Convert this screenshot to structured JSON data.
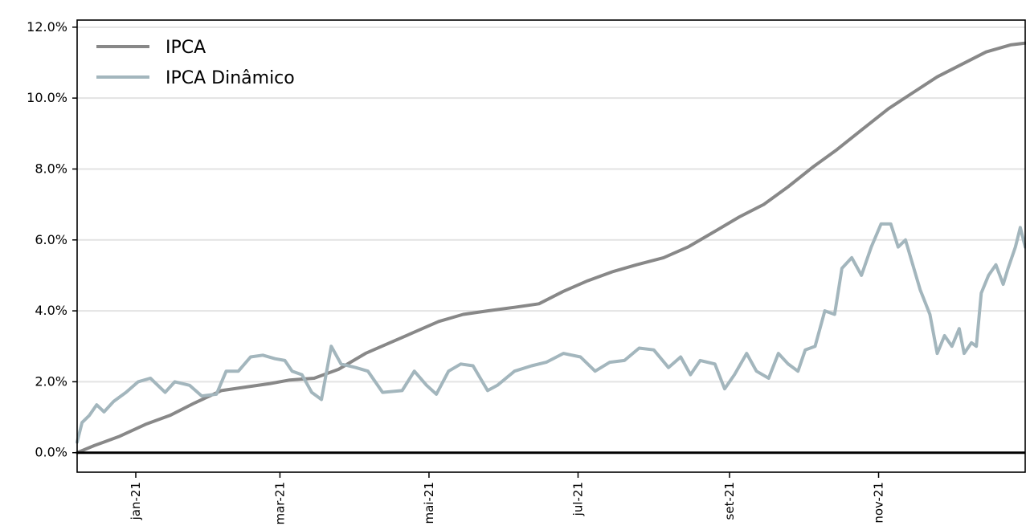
{
  "chart_data": {
    "type": "line",
    "title": "",
    "xlabel": "",
    "ylabel": "",
    "y_tick_labels": [
      "0.0%",
      "2.0%",
      "4.0%",
      "6.0%",
      "8.0%",
      "10.0%",
      "12.0%"
    ],
    "y_ticks": [
      0,
      2,
      4,
      6,
      8,
      10,
      12
    ],
    "ylim": [
      -0.55,
      12.2
    ],
    "xlim": [
      "2020-12-08",
      "2021-12-31"
    ],
    "x_ticks": [
      "2021-01-01",
      "2021-03-01",
      "2021-05-01",
      "2021-07-01",
      "2021-09-01",
      "2021-11-01"
    ],
    "x_tick_labels": [
      "jan-21",
      "mar-21",
      "mai-21",
      "jul-21",
      "set-21",
      "nov-21"
    ],
    "grid": "horizontal",
    "legend_position": "top-left",
    "zero_line": true,
    "series": [
      {
        "name": "IPCA",
        "color": "#888888",
        "points": [
          [
            "2020-12-08",
            0.0
          ],
          [
            "2020-12-15",
            0.2
          ],
          [
            "2020-12-25",
            0.45
          ],
          [
            "2021-01-05",
            0.8
          ],
          [
            "2021-01-15",
            1.05
          ],
          [
            "2021-01-25",
            1.4
          ],
          [
            "2021-02-05",
            1.75
          ],
          [
            "2021-02-15",
            1.85
          ],
          [
            "2021-02-25",
            1.95
          ],
          [
            "2021-03-05",
            2.05
          ],
          [
            "2021-03-15",
            2.1
          ],
          [
            "2021-03-25",
            2.35
          ],
          [
            "2021-04-05",
            2.8
          ],
          [
            "2021-04-15",
            3.1
          ],
          [
            "2021-04-25",
            3.4
          ],
          [
            "2021-05-05",
            3.7
          ],
          [
            "2021-05-15",
            3.9
          ],
          [
            "2021-05-25",
            4.0
          ],
          [
            "2021-06-05",
            4.1
          ],
          [
            "2021-06-15",
            4.2
          ],
          [
            "2021-06-25",
            4.55
          ],
          [
            "2021-07-05",
            4.85
          ],
          [
            "2021-07-15",
            5.1
          ],
          [
            "2021-07-25",
            5.3
          ],
          [
            "2021-08-05",
            5.5
          ],
          [
            "2021-08-15",
            5.8
          ],
          [
            "2021-08-25",
            6.2
          ],
          [
            "2021-09-05",
            6.65
          ],
          [
            "2021-09-15",
            7.0
          ],
          [
            "2021-09-25",
            7.5
          ],
          [
            "2021-10-05",
            8.05
          ],
          [
            "2021-10-15",
            8.55
          ],
          [
            "2021-10-25",
            9.1
          ],
          [
            "2021-11-05",
            9.7
          ],
          [
            "2021-11-15",
            10.15
          ],
          [
            "2021-11-25",
            10.6
          ],
          [
            "2021-12-05",
            10.95
          ],
          [
            "2021-12-15",
            11.3
          ],
          [
            "2021-12-25",
            11.5
          ],
          [
            "2021-12-31",
            11.55
          ]
        ]
      },
      {
        "name": "IPCA Dinâmico",
        "color": "#a3b6bd",
        "points": [
          [
            "2020-12-08",
            0.3
          ],
          [
            "2020-12-10",
            0.85
          ],
          [
            "2020-12-13",
            1.05
          ],
          [
            "2020-12-16",
            1.35
          ],
          [
            "2020-12-19",
            1.15
          ],
          [
            "2020-12-23",
            1.45
          ],
          [
            "2020-12-28",
            1.7
          ],
          [
            "2021-01-02",
            2.0
          ],
          [
            "2021-01-07",
            2.1
          ],
          [
            "2021-01-13",
            1.7
          ],
          [
            "2021-01-17",
            2.0
          ],
          [
            "2021-01-23",
            1.9
          ],
          [
            "2021-01-28",
            1.6
          ],
          [
            "2021-02-03",
            1.65
          ],
          [
            "2021-02-07",
            2.3
          ],
          [
            "2021-02-12",
            2.3
          ],
          [
            "2021-02-17",
            2.7
          ],
          [
            "2021-02-22",
            2.75
          ],
          [
            "2021-02-27",
            2.65
          ],
          [
            "2021-03-03",
            2.6
          ],
          [
            "2021-03-06",
            2.3
          ],
          [
            "2021-03-10",
            2.2
          ],
          [
            "2021-03-14",
            1.7
          ],
          [
            "2021-03-18",
            1.5
          ],
          [
            "2021-03-22",
            3.0
          ],
          [
            "2021-03-26",
            2.5
          ],
          [
            "2021-04-01",
            2.4
          ],
          [
            "2021-04-06",
            2.3
          ],
          [
            "2021-04-12",
            1.7
          ],
          [
            "2021-04-20",
            1.75
          ],
          [
            "2021-04-25",
            2.3
          ],
          [
            "2021-04-30",
            1.9
          ],
          [
            "2021-05-04",
            1.65
          ],
          [
            "2021-05-09",
            2.3
          ],
          [
            "2021-05-14",
            2.5
          ],
          [
            "2021-05-19",
            2.45
          ],
          [
            "2021-05-25",
            1.75
          ],
          [
            "2021-05-29",
            1.9
          ],
          [
            "2021-06-05",
            2.3
          ],
          [
            "2021-06-12",
            2.45
          ],
          [
            "2021-06-18",
            2.55
          ],
          [
            "2021-06-25",
            2.8
          ],
          [
            "2021-07-02",
            2.7
          ],
          [
            "2021-07-08",
            2.3
          ],
          [
            "2021-07-14",
            2.55
          ],
          [
            "2021-07-20",
            2.6
          ],
          [
            "2021-07-26",
            2.95
          ],
          [
            "2021-08-01",
            2.9
          ],
          [
            "2021-08-07",
            2.4
          ],
          [
            "2021-08-12",
            2.7
          ],
          [
            "2021-08-16",
            2.2
          ],
          [
            "2021-08-20",
            2.6
          ],
          [
            "2021-08-26",
            2.5
          ],
          [
            "2021-08-30",
            1.8
          ],
          [
            "2021-09-03",
            2.2
          ],
          [
            "2021-09-08",
            2.8
          ],
          [
            "2021-09-12",
            2.3
          ],
          [
            "2021-09-17",
            2.1
          ],
          [
            "2021-09-21",
            2.8
          ],
          [
            "2021-09-25",
            2.5
          ],
          [
            "2021-09-29",
            2.3
          ],
          [
            "2021-10-02",
            2.9
          ],
          [
            "2021-10-06",
            3.0
          ],
          [
            "2021-10-10",
            4.0
          ],
          [
            "2021-10-14",
            3.9
          ],
          [
            "2021-10-17",
            5.2
          ],
          [
            "2021-10-21",
            5.5
          ],
          [
            "2021-10-25",
            5.0
          ],
          [
            "2021-10-29",
            5.8
          ],
          [
            "2021-11-02",
            6.45
          ],
          [
            "2021-11-06",
            6.45
          ],
          [
            "2021-11-09",
            5.8
          ],
          [
            "2021-11-12",
            6.0
          ],
          [
            "2021-11-15",
            5.3
          ],
          [
            "2021-11-18",
            4.6
          ],
          [
            "2021-11-22",
            3.9
          ],
          [
            "2021-11-25",
            2.8
          ],
          [
            "2021-11-28",
            3.3
          ],
          [
            "2021-12-01",
            3.0
          ],
          [
            "2021-12-04",
            3.5
          ],
          [
            "2021-12-06",
            2.8
          ],
          [
            "2021-12-09",
            3.1
          ],
          [
            "2021-12-11",
            3.0
          ],
          [
            "2021-12-13",
            4.5
          ],
          [
            "2021-12-16",
            5.0
          ],
          [
            "2021-12-19",
            5.3
          ],
          [
            "2021-12-22",
            4.75
          ],
          [
            "2021-12-24",
            5.2
          ],
          [
            "2021-12-27",
            5.8
          ],
          [
            "2021-12-29",
            6.35
          ],
          [
            "2021-12-31",
            5.8
          ]
        ]
      }
    ]
  }
}
